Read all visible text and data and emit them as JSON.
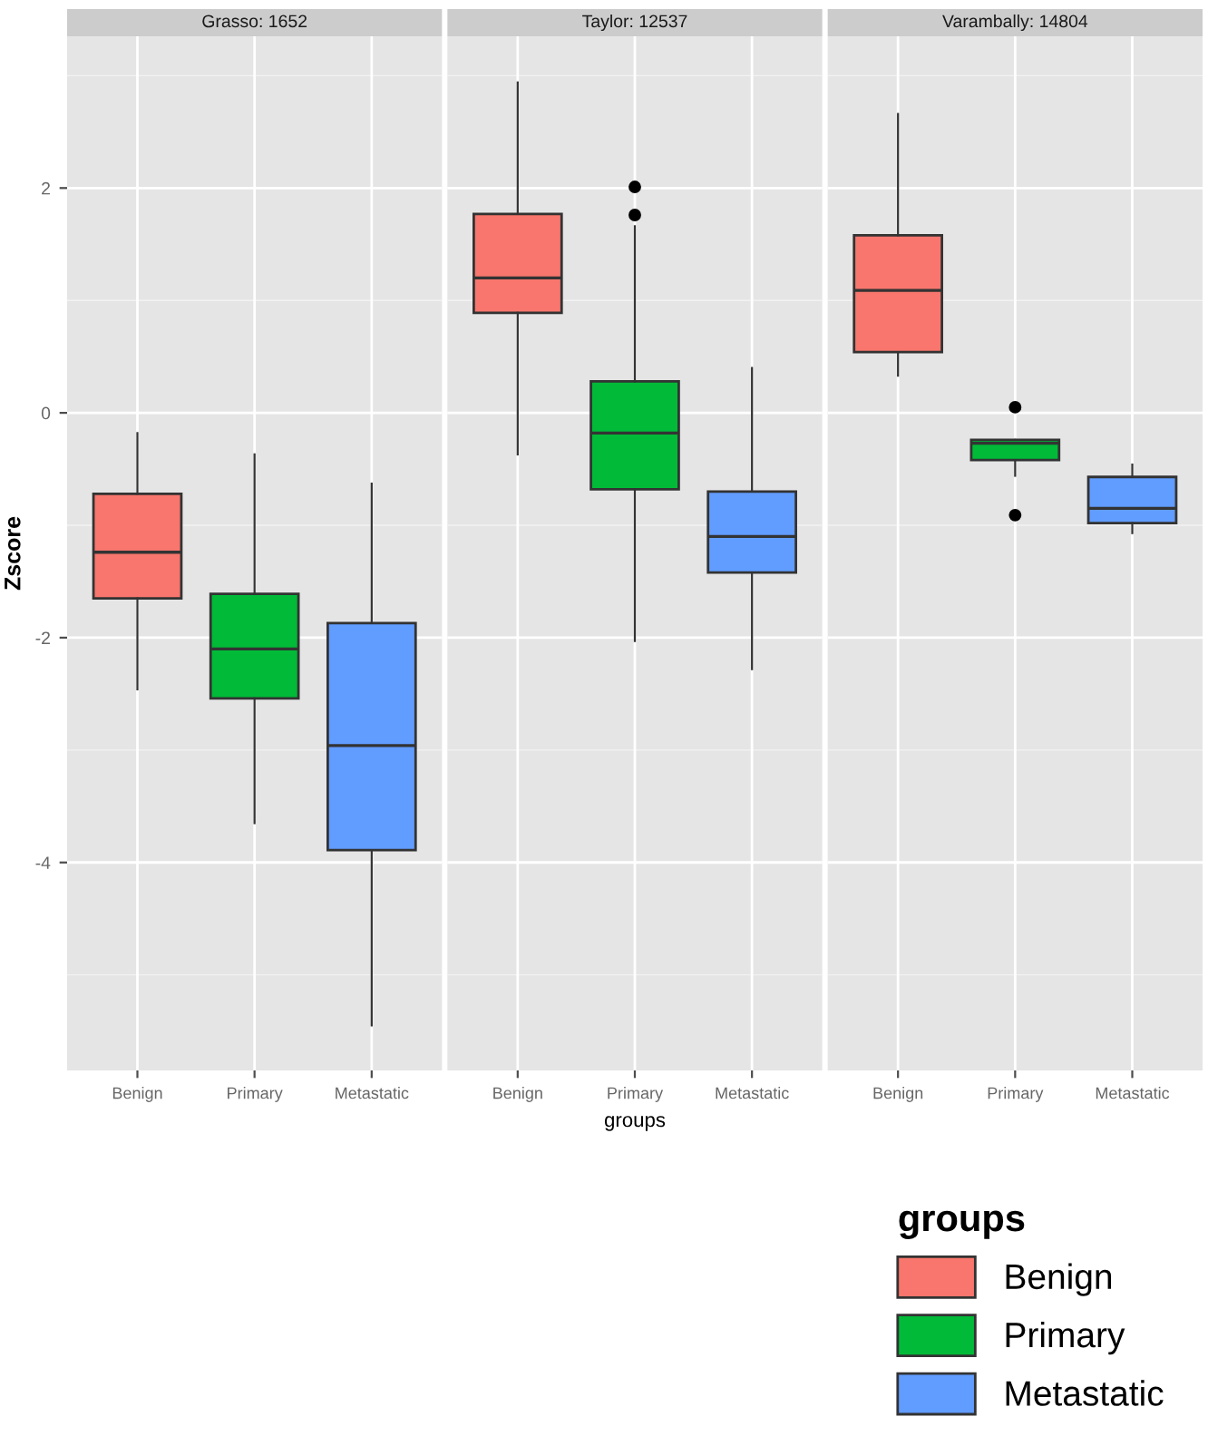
{
  "chart_data": [
    {
      "type": "box",
      "title": "Grasso: 1652",
      "ylabel": "Zscore",
      "legend_title": "groups",
      "legend": "bottom right",
      "categories": [
        "Benign",
        "Primary",
        "Metastatic"
      ],
      "series": [
        {
          "name": "Benign",
          "color": "#f8766d",
          "boxes": [
            {
              "low": -2.46,
              "q1": -1.65,
              "median": -1.24,
              "q3": -0.72,
              "high": -0.18
            },
            null,
            null
          ]
        },
        {
          "name": "Primary",
          "color": "#00ba38",
          "boxes": [
            null,
            {
              "low": -3.65,
              "q1": -2.54,
              "median": -2.1,
              "q3": -1.61,
              "high": -0.37
            },
            null
          ]
        },
        {
          "name": "Metastatic",
          "color": "#619cff",
          "boxes": [
            null,
            null,
            {
              "low": -5.45,
              "q1": -3.89,
              "median": -2.96,
              "q3": -1.87,
              "high": -0.63
            }
          ]
        }
      ],
      "ylim": [
        -5.85,
        3.35
      ],
      "yticks": [
        -4,
        -2,
        0,
        2
      ],
      "grid": true
    },
    {
      "type": "box",
      "title": "Taylor: 12537",
      "xlabel": "groups",
      "categories": [
        "Benign",
        "Primary",
        "Metastatic"
      ],
      "series": [
        {
          "color": "#f8766d",
          "boxes": [
            {
              "low": -0.37,
              "q1": 0.89,
              "median": 1.2,
              "q3": 1.77,
              "high": 2.94
            },
            null,
            null
          ]
        },
        {
          "color": "#00ba38",
          "boxes": [
            null,
            {
              "low": -2.03,
              "q1": -0.68,
              "median": -0.18,
              "q3": 0.28,
              "high": 1.66,
              "outliers": [
                1.76,
                2.01
              ]
            },
            null
          ]
        },
        {
          "color": "#619cff",
          "boxes": [
            null,
            null,
            {
              "low": -2.28,
              "q1": -1.42,
              "median": -1.1,
              "q3": -0.7,
              "high": 0.4
            }
          ]
        }
      ],
      "ylim": [
        -5.85,
        3.35
      ],
      "tick_labels": "x",
      "grid": true
    },
    {
      "type": "box",
      "title": "Varambally: 14804",
      "categories": [
        "Benign",
        "Primary",
        "Metastatic"
      ],
      "series": [
        {
          "color": "#f8766d",
          "boxes": [
            {
              "low": 0.33,
              "q1": 0.54,
              "median": 1.09,
              "q3": 1.58,
              "high": 2.66
            },
            null,
            null
          ]
        },
        {
          "color": "#00ba38",
          "boxes": [
            null,
            {
              "low": -0.56,
              "q1": -0.42,
              "median": -0.27,
              "q3": -0.24,
              "high": -0.24,
              "outliers": [
                0.05,
                -0.91
              ]
            },
            null
          ]
        },
        {
          "color": "#619cff",
          "boxes": [
            null,
            null,
            {
              "low": -1.07,
              "q1": -0.98,
              "median": -0.85,
              "q3": -0.57,
              "high": -0.46
            }
          ]
        }
      ],
      "ylim": [
        -5.85,
        3.35
      ],
      "tick_labels": "x",
      "grid": true
    }
  ]
}
